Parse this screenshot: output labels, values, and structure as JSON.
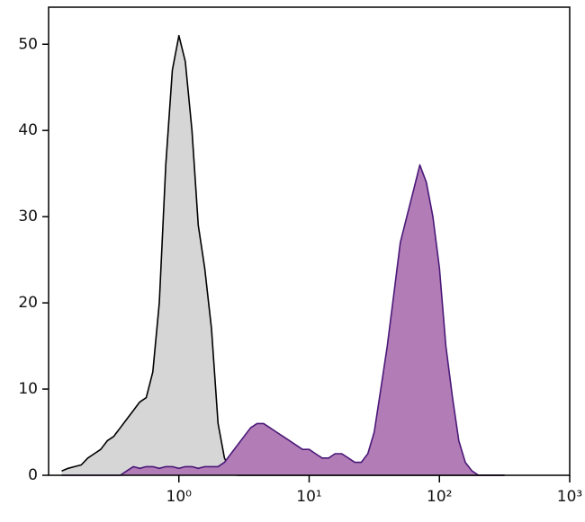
{
  "chart_data": {
    "type": "area",
    "x": [
      0.126,
      0.141,
      0.158,
      0.178,
      0.2,
      0.224,
      0.251,
      0.282,
      0.316,
      0.355,
      0.398,
      0.447,
      0.501,
      0.562,
      0.631,
      0.708,
      0.794,
      0.891,
      1,
      1.12,
      1.26,
      1.41,
      1.58,
      1.78,
      2,
      2.24,
      2.51,
      2.82,
      3.16,
      3.55,
      3.98,
      4.47,
      5.01,
      5.62,
      6.31,
      7.08,
      7.94,
      8.91,
      10,
      11.2,
      12.6,
      14.1,
      15.8,
      17.8,
      20,
      22.4,
      25.1,
      28.2,
      31.6,
      35.5,
      39.8,
      44.7,
      50.1,
      56.2,
      63.1,
      70.8,
      79.4,
      89.1,
      100,
      112,
      126,
      141,
      158,
      178,
      200,
      224,
      251,
      282,
      316
    ],
    "series": [
      {
        "color": "#d6d6d6",
        "stroke": "#000000",
        "values": [
          0.5,
          0.8,
          1,
          1.2,
          2,
          2.5,
          3,
          4,
          4.5,
          5.5,
          6.5,
          7.5,
          8.5,
          9,
          12,
          20,
          36,
          47,
          51,
          48,
          40,
          29,
          24,
          17,
          6,
          2,
          0.5,
          0,
          0,
          0,
          0,
          0,
          0,
          0,
          0,
          0,
          0,
          0,
          0,
          0,
          0,
          0,
          0,
          0,
          0,
          0,
          0,
          0,
          0,
          0,
          0,
          0,
          0,
          0,
          0,
          0,
          0,
          0,
          0,
          0,
          0,
          0,
          0,
          0,
          0,
          0,
          0,
          0,
          0
        ]
      },
      {
        "color": "#b27db7",
        "stroke": "#4a1878",
        "values": [
          0,
          0,
          0,
          0,
          0,
          0,
          0,
          0,
          0,
          0,
          0.5,
          1,
          0.8,
          1,
          1,
          0.8,
          1,
          1,
          0.8,
          1,
          1,
          0.8,
          1,
          1,
          1,
          1.5,
          2.5,
          3.5,
          4.5,
          5.5,
          6,
          6,
          5.5,
          5,
          4.5,
          4,
          3.5,
          3,
          3,
          2.5,
          2,
          2,
          2.5,
          2.5,
          2,
          1.5,
          1.5,
          2.5,
          5,
          10,
          15,
          21,
          27,
          30,
          33,
          36,
          34,
          30,
          24,
          15,
          9,
          4,
          1.5,
          0.5,
          0,
          0,
          0,
          0,
          0
        ]
      }
    ],
    "log_x": true,
    "xlim": [
      0.1,
      1000
    ],
    "xticks": [
      {
        "value": 1,
        "label": "10⁰"
      },
      {
        "value": 10,
        "label": "10¹"
      },
      {
        "value": 100,
        "label": "10²"
      },
      {
        "value": 1000,
        "label": "10³"
      }
    ],
    "ylim": [
      0,
      54.3
    ],
    "yticks": [
      0,
      10,
      20,
      30,
      40,
      50
    ]
  }
}
